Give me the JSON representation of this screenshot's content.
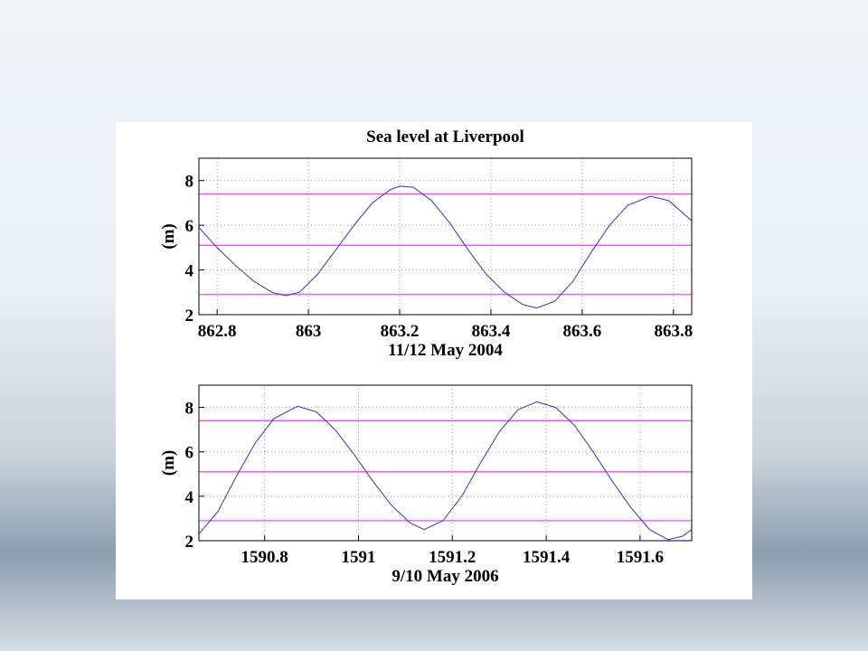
{
  "chart_data": [
    {
      "type": "line",
      "title": "Sea level at Liverpool",
      "ylabel": "(m)",
      "xlabel": "11/12 May 2004",
      "x": [
        862.76,
        862.8,
        862.84,
        862.88,
        862.92,
        862.95,
        862.98,
        863.02,
        863.06,
        863.1,
        863.14,
        863.18,
        863.2,
        863.23,
        863.27,
        863.31,
        863.35,
        863.39,
        863.43,
        863.47,
        863.5,
        863.54,
        863.58,
        863.62,
        863.66,
        863.7,
        863.75,
        863.79,
        863.84
      ],
      "values": [
        5.9,
        5.0,
        4.2,
        3.5,
        3.0,
        2.85,
        3.0,
        3.8,
        4.9,
        6.0,
        7.0,
        7.6,
        7.75,
        7.7,
        7.1,
        6.1,
        4.9,
        3.8,
        3.0,
        2.45,
        2.3,
        2.6,
        3.5,
        4.8,
        6.0,
        6.9,
        7.3,
        7.1,
        6.2
      ],
      "color": "#3333cc",
      "hlines": {
        "values": [
          7.4,
          5.1,
          2.9
        ],
        "color": "#ff44ff"
      },
      "xlim": [
        862.76,
        863.84
      ],
      "xticks": [
        862.8,
        863,
        863.2,
        863.4,
        863.6,
        863.8
      ],
      "ylim": [
        2,
        9
      ],
      "yticks": [
        2,
        4,
        6,
        8
      ],
      "grid": true
    },
    {
      "type": "line",
      "ylabel": "(m)",
      "xlabel": "9/10 May 2006",
      "x": [
        1590.66,
        1590.7,
        1590.74,
        1590.78,
        1590.82,
        1590.87,
        1590.91,
        1590.95,
        1590.99,
        1591.03,
        1591.07,
        1591.11,
        1591.14,
        1591.18,
        1591.22,
        1591.26,
        1591.3,
        1591.34,
        1591.38,
        1591.42,
        1591.46,
        1591.5,
        1591.54,
        1591.58,
        1591.62,
        1591.66,
        1591.69,
        1591.71
      ],
      "values": [
        2.3,
        3.3,
        4.9,
        6.4,
        7.5,
        8.05,
        7.8,
        7.0,
        5.9,
        4.7,
        3.6,
        2.8,
        2.5,
        2.9,
        4.0,
        5.5,
        6.9,
        7.9,
        8.25,
        8.0,
        7.2,
        6.0,
        4.7,
        3.5,
        2.5,
        2.05,
        2.2,
        2.5
      ],
      "color": "#3333cc",
      "hlines": {
        "values": [
          7.4,
          5.1,
          2.9
        ],
        "color": "#ff44ff"
      },
      "xlim": [
        1590.66,
        1591.71
      ],
      "xticks": [
        1590.8,
        1591,
        1591.2,
        1591.4,
        1591.6
      ],
      "ylim": [
        2,
        9
      ],
      "yticks": [
        2,
        4,
        6,
        8
      ],
      "grid": true
    }
  ]
}
